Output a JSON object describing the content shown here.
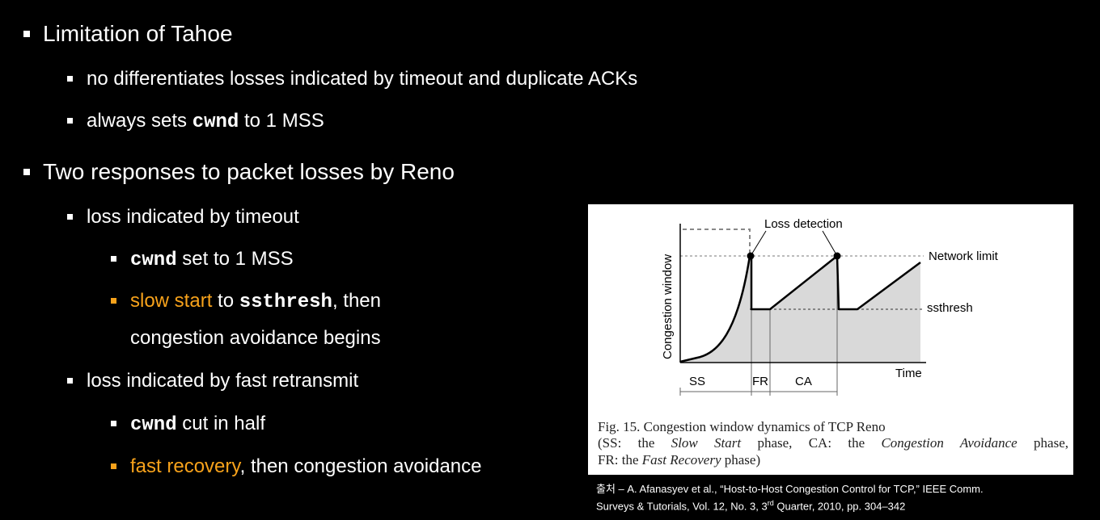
{
  "bullets": {
    "b1": "Limitation of Tahoe",
    "b1_1": "no differentiates losses indicated by timeout and duplicate ACKs",
    "b1_2_pre": "always sets ",
    "b1_2_code": "cwnd",
    "b1_2_post": " to 1 MSS",
    "b2": "Two responses to packet losses by Reno",
    "b2_1": "loss indicated by timeout",
    "b2_1_1_code": "cwnd",
    "b2_1_1_post": " set to 1 MSS",
    "b2_1_2_hl": "slow start",
    "b2_1_2_mid": " to ",
    "b2_1_2_code": "ssthresh",
    "b2_1_2_post": ", then",
    "b2_1_2_cont": "congestion avoidance begins",
    "b2_2": "loss indicated by fast retransmit",
    "b2_2_1_code": "cwnd",
    "b2_2_1_post": " cut in half",
    "b2_2_2_hl": "fast recovery",
    "b2_2_2_post": ", then congestion avoidance"
  },
  "figure": {
    "loss_detection": "Loss detection",
    "network_limit": "Network limit",
    "ssthresh": "ssthresh",
    "ylabel": "Congestion window",
    "xlabel": "Time",
    "phase_ss": "SS",
    "phase_fr": "FR",
    "phase_ca": "CA",
    "caption_line1": "Fig. 15.   Congestion window dynamics of TCP Reno",
    "caption_line2_a": "(SS: the ",
    "caption_line2_b": "Slow Start",
    "caption_line2_c": " phase, CA: the ",
    "caption_line2_d": "Congestion Avoidance",
    "caption_line2_e": " phase,",
    "caption_line3_a": "FR: the ",
    "caption_line3_b": "Fast Recovery",
    "caption_line3_c": " phase)"
  },
  "source": {
    "line1_a": "출처 – A. Afanasyev et al., “Host-to-Host Congestion Control for TCP,” IEEE Comm.",
    "line2_a": "Surveys & Tutorials, Vol. 12, No. 3, 3",
    "line2_sup": "rd",
    "line2_b": " Quarter, 2010, pp. 304–342"
  },
  "colors": {
    "accent": "#f7a21b",
    "background": "#000000",
    "figure_fill": "#d9d9d9"
  }
}
